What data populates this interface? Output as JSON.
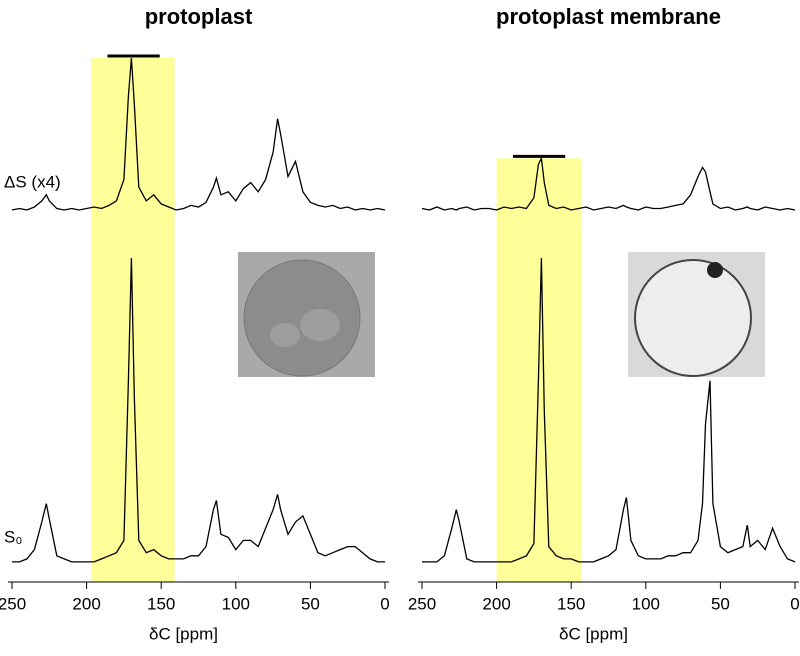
{
  "chart_data": [
    {
      "type": "line",
      "title": "protoplast",
      "xlabel": "δC [ppm]",
      "x": [
        250,
        245,
        240,
        235,
        230,
        227,
        225,
        220,
        215,
        210,
        205,
        200,
        195,
        190,
        185,
        180,
        175,
        172,
        170,
        168,
        165,
        160,
        155,
        150,
        145,
        140,
        135,
        130,
        125,
        120,
        115,
        113,
        110,
        105,
        100,
        95,
        90,
        85,
        80,
        75,
        72,
        70,
        65,
        60,
        55,
        50,
        45,
        40,
        35,
        30,
        25,
        20,
        15,
        10,
        5,
        0
      ],
      "xlim": [
        250,
        0
      ],
      "xticks": [
        250,
        200,
        150,
        100,
        50,
        0
      ],
      "ylim": [
        0,
        100
      ],
      "highlight": [
        197,
        141
      ],
      "highlight_color": "#ffff99",
      "bar": [
        186,
        151
      ],
      "series": [
        {
          "name": "ΔS (x4)",
          "color": "#000000",
          "values": [
            0,
            1,
            0,
            2,
            6,
            10,
            6,
            1,
            0,
            1,
            0,
            1,
            2,
            1,
            3,
            6,
            20,
            75,
            100,
            70,
            15,
            6,
            10,
            4,
            2,
            0,
            1,
            3,
            2,
            5,
            15,
            21,
            10,
            12,
            6,
            14,
            18,
            12,
            20,
            38,
            60,
            50,
            22,
            32,
            12,
            5,
            3,
            2,
            3,
            1,
            2,
            0,
            1,
            0,
            1,
            0
          ]
        },
        {
          "name": "S₀",
          "color": "#000000",
          "values": [
            1,
            1,
            2,
            5,
            14,
            20,
            15,
            3,
            2,
            1,
            1,
            1,
            1,
            2,
            3,
            4,
            8,
            60,
            100,
            55,
            8,
            4,
            5,
            3,
            2,
            2,
            2,
            3,
            3,
            6,
            18,
            21,
            10,
            9,
            5,
            8,
            8,
            6,
            12,
            18,
            23,
            18,
            10,
            14,
            16,
            10,
            4,
            3,
            4,
            5,
            6,
            6,
            4,
            2,
            1,
            1
          ]
        }
      ]
    },
    {
      "type": "line",
      "title": "protoplast membrane",
      "xlabel": "δC [ppm]",
      "x": [
        250,
        245,
        240,
        235,
        230,
        227,
        225,
        220,
        215,
        210,
        205,
        200,
        195,
        190,
        185,
        180,
        175,
        172,
        170,
        168,
        165,
        160,
        155,
        150,
        145,
        140,
        135,
        130,
        125,
        120,
        115,
        113,
        110,
        105,
        100,
        95,
        90,
        85,
        80,
        75,
        70,
        65,
        62,
        60,
        57,
        55,
        50,
        45,
        40,
        35,
        32,
        30,
        25,
        20,
        15,
        10,
        5,
        0
      ],
      "xlim": [
        250,
        0
      ],
      "xticks": [
        250,
        200,
        150,
        100,
        50,
        0
      ],
      "ylim": [
        0,
        100
      ],
      "highlight": [
        200,
        143
      ],
      "highlight_color": "#ffff99",
      "bar": [
        189,
        154
      ],
      "series": [
        {
          "color": "#000000",
          "values": [
            1,
            0,
            2,
            0,
            1,
            0,
            1,
            2,
            0,
            1,
            1,
            0,
            2,
            1,
            2,
            1,
            8,
            30,
            34,
            18,
            3,
            1,
            2,
            0,
            1,
            2,
            0,
            1,
            2,
            1,
            3,
            2,
            1,
            0,
            2,
            1,
            1,
            2,
            3,
            4,
            10,
            22,
            28,
            25,
            12,
            4,
            1,
            2,
            0,
            1,
            2,
            1,
            0,
            2,
            1,
            0,
            1,
            0
          ]
        },
        {
          "color": "#000000",
          "values": [
            1,
            1,
            1,
            3,
            12,
            18,
            14,
            2,
            1,
            1,
            1,
            1,
            1,
            1,
            2,
            3,
            7,
            60,
            100,
            50,
            6,
            3,
            2,
            2,
            1,
            1,
            1,
            2,
            3,
            5,
            18,
            22,
            8,
            3,
            2,
            2,
            2,
            3,
            3,
            4,
            4,
            8,
            20,
            46,
            60,
            20,
            6,
            4,
            5,
            6,
            13,
            6,
            8,
            5,
            12,
            6,
            2,
            1
          ]
        }
      ]
    }
  ]
}
